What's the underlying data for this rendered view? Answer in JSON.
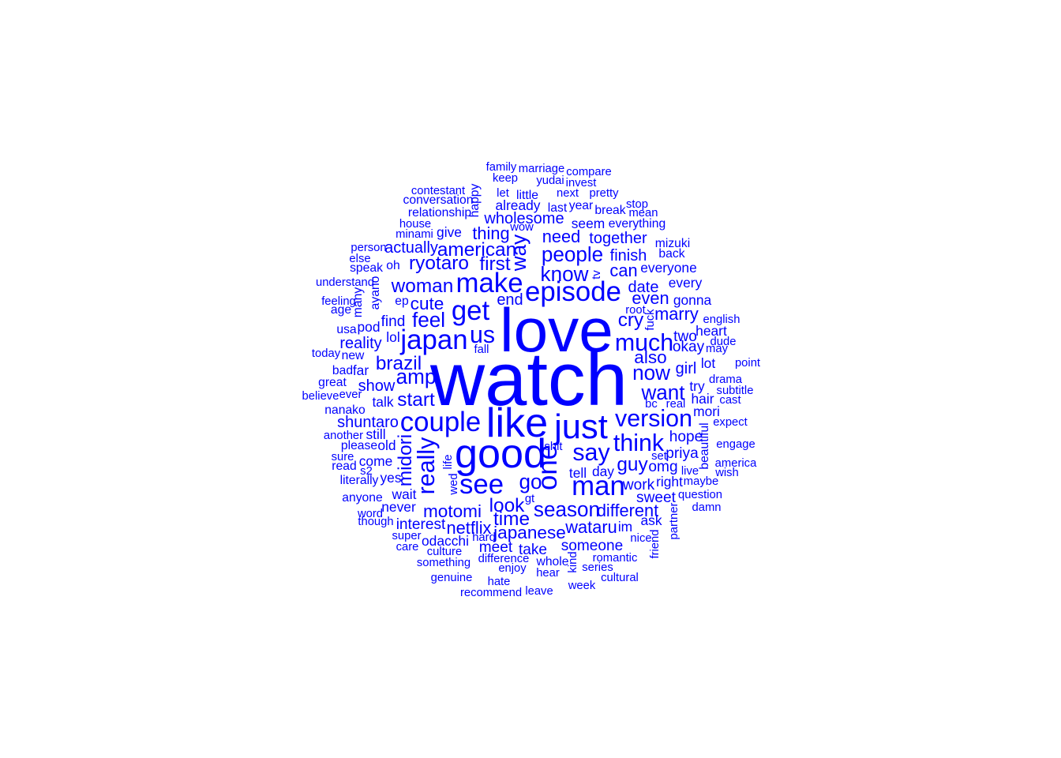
{
  "word_cloud": {
    "color": "#0000ff",
    "words": [
      {
        "text": "watch",
        "size": 11
      },
      {
        "text": "love",
        "size": 9
      },
      {
        "text": "like",
        "size": 6
      },
      {
        "text": "good",
        "size": 6
      },
      {
        "text": "just",
        "size": 5
      },
      {
        "text": "episode",
        "size": 4
      },
      {
        "text": "get",
        "size": 4
      },
      {
        "text": "couple",
        "size": 4
      },
      {
        "text": "japan",
        "size": 4
      },
      {
        "text": "make",
        "size": 4
      },
      {
        "text": "one",
        "size": 4
      },
      {
        "text": "man",
        "size": 4
      },
      {
        "text": "see",
        "size": 4
      },
      {
        "text": "version",
        "size": 3.5
      },
      {
        "text": "much",
        "size": 3.5
      },
      {
        "text": "really",
        "size": 3.5
      },
      {
        "text": "say",
        "size": 3.5
      },
      {
        "text": "think",
        "size": 3.5
      },
      {
        "text": "us",
        "size": 3.5
      },
      {
        "text": "want",
        "size": 3
      },
      {
        "text": "go",
        "size": 3
      },
      {
        "text": "know",
        "size": 3
      },
      {
        "text": "people",
        "size": 3
      },
      {
        "text": "amp",
        "size": 3
      },
      {
        "text": "feel",
        "size": 3
      },
      {
        "text": "now",
        "size": 3
      },
      {
        "text": "season",
        "size": 3
      },
      {
        "text": "way",
        "size": 3
      },
      {
        "text": "american",
        "size": 2.8
      },
      {
        "text": "look",
        "size": 2.8
      },
      {
        "text": "time",
        "size": 2.8
      },
      {
        "text": "ryotaro",
        "size": 2.8
      },
      {
        "text": "woman",
        "size": 2.8
      },
      {
        "text": "midori",
        "size": 2.8
      },
      {
        "text": "start",
        "size": 2.8
      },
      {
        "text": "brazil",
        "size": 2.8
      },
      {
        "text": "cry",
        "size": 2.8
      },
      {
        "text": "guy",
        "size": 2.8
      },
      {
        "text": "first",
        "size": 2.8
      },
      {
        "text": "motomi",
        "size": 2.6
      },
      {
        "text": "cute",
        "size": 2.6
      },
      {
        "text": "japanese",
        "size": 2.6
      },
      {
        "text": "also",
        "size": 2.6
      },
      {
        "text": "wataru",
        "size": 2.5
      },
      {
        "text": "need",
        "size": 2.5
      },
      {
        "text": "can",
        "size": 2.5
      },
      {
        "text": "even",
        "size": 2.5
      },
      {
        "text": "thing",
        "size": 2.5
      },
      {
        "text": "different",
        "size": 2.5
      },
      {
        "text": "marry",
        "size": 2.5
      },
      {
        "text": "netflix",
        "size": 2.5
      },
      {
        "text": "finish",
        "size": 2.3
      },
      {
        "text": "together",
        "size": 2.3
      },
      {
        "text": "wholesome",
        "size": 2.3
      },
      {
        "text": "girl",
        "size": 2.3
      },
      {
        "text": "date",
        "size": 2.3
      },
      {
        "text": "end",
        "size": 2.3
      },
      {
        "text": "show",
        "size": 2.3
      },
      {
        "text": "reality",
        "size": 2.3
      },
      {
        "text": "shuntaro",
        "size": 2.3
      },
      {
        "text": "actually",
        "size": 2.3
      },
      {
        "text": "find",
        "size": 2.2
      },
      {
        "text": "meet",
        "size": 2.2
      },
      {
        "text": "take",
        "size": 2.2
      },
      {
        "text": "someone",
        "size": 2.2
      },
      {
        "text": "sweet",
        "size": 2.2
      },
      {
        "text": "interest",
        "size": 2.2
      },
      {
        "text": "work",
        "size": 2.2
      },
      {
        "text": "omg",
        "size": 2.2
      },
      {
        "text": "priya",
        "size": 2.2
      },
      {
        "text": "hope",
        "size": 2.2
      },
      {
        "text": "two",
        "size": 2.2
      },
      {
        "text": "okay",
        "size": 2.2
      },
      {
        "text": "every",
        "size": 2
      },
      {
        "text": "gonna",
        "size": 2
      },
      {
        "text": "everyone",
        "size": 2
      },
      {
        "text": "seem",
        "size": 2
      },
      {
        "text": "already",
        "size": 2
      },
      {
        "text": "give",
        "size": 2
      },
      {
        "text": "lol",
        "size": 2
      },
      {
        "text": "talk",
        "size": 2
      },
      {
        "text": "still",
        "size": 2
      },
      {
        "text": "old",
        "size": 2
      },
      {
        "text": "come",
        "size": 2
      },
      {
        "text": "yes",
        "size": 2
      },
      {
        "text": "wait",
        "size": 2
      },
      {
        "text": "never",
        "size": 2
      },
      {
        "text": "odacchi",
        "size": 2
      },
      {
        "text": "tell",
        "size": 2
      },
      {
        "text": "day",
        "size": 2
      },
      {
        "text": "right",
        "size": 2
      },
      {
        "text": "im",
        "size": 2
      },
      {
        "text": "ask",
        "size": 2
      },
      {
        "text": "pod",
        "size": 2
      },
      {
        "text": "far",
        "size": 2
      },
      {
        "text": "mori",
        "size": 2
      },
      {
        "text": "hair",
        "size": 2
      },
      {
        "text": "try",
        "size": 2
      },
      {
        "text": "lot",
        "size": 2
      },
      {
        "text": "heart",
        "size": 2
      },
      {
        "text": "whole",
        "size": 1.8
      },
      {
        "text": "beautiful",
        "size": 1.8
      },
      {
        "text": "ayano",
        "size": 1.8
      },
      {
        "text": "happy",
        "size": 1.8
      },
      {
        "text": "relationship",
        "size": 1.8
      },
      {
        "text": "conversation",
        "size": 1.8
      },
      {
        "text": "contestant",
        "size": 1.7
      },
      {
        "text": "little",
        "size": 1.8
      },
      {
        "text": "last",
        "size": 1.8
      },
      {
        "text": "year",
        "size": 1.8
      },
      {
        "text": "break",
        "size": 1.8
      },
      {
        "text": "everything",
        "size": 1.8
      },
      {
        "text": "mizuki",
        "size": 1.8
      },
      {
        "text": "back",
        "size": 1.8
      },
      {
        "text": "bad",
        "size": 1.8
      },
      {
        "text": "new",
        "size": 1.8
      },
      {
        "text": "great",
        "size": 1.8
      },
      {
        "text": "nanako",
        "size": 1.8
      },
      {
        "text": "another",
        "size": 1.7
      },
      {
        "text": "please",
        "size": 1.8
      },
      {
        "text": "read",
        "size": 1.8
      },
      {
        "text": "literally",
        "size": 1.8
      },
      {
        "text": "anyone",
        "size": 1.8
      },
      {
        "text": "usa",
        "size": 1.8
      },
      {
        "text": "age",
        "size": 1.8
      },
      {
        "text": "feeling",
        "size": 1.7
      },
      {
        "text": "many",
        "size": 1.8
      },
      {
        "text": "understand",
        "size": 1.7
      },
      {
        "text": "speak",
        "size": 1.8
      },
      {
        "text": "else",
        "size": 1.7
      },
      {
        "text": "person",
        "size": 1.7
      },
      {
        "text": "minami",
        "size": 1.7
      },
      {
        "text": "house",
        "size": 1.7
      },
      {
        "text": "oh",
        "size": 1.8
      },
      {
        "text": "ep",
        "size": 1.8
      },
      {
        "text": "wow",
        "size": 1.7
      },
      {
        "text": "pretty",
        "size": 1.7
      },
      {
        "text": "next",
        "size": 1.7
      },
      {
        "text": "let",
        "size": 1.7
      },
      {
        "text": "yudai",
        "size": 1.7
      },
      {
        "text": "invest",
        "size": 1.7
      },
      {
        "text": "keep",
        "size": 1.7
      },
      {
        "text": "family",
        "size": 1.7
      },
      {
        "text": "marriage",
        "size": 1.7
      },
      {
        "text": "compare",
        "size": 1.7
      },
      {
        "text": "stop",
        "size": 1.7
      },
      {
        "text": "mean",
        "size": 1.7
      },
      {
        "text": "tv",
        "size": 1.7
      },
      {
        "text": "root",
        "size": 1.7
      },
      {
        "text": "fuck",
        "size": 1.7
      },
      {
        "text": "english",
        "size": 1.7
      },
      {
        "text": "dude",
        "size": 1.7
      },
      {
        "text": "may",
        "size": 1.7
      },
      {
        "text": "point",
        "size": 1.7
      },
      {
        "text": "drama",
        "size": 1.7
      },
      {
        "text": "subtitle",
        "size": 1.7
      },
      {
        "text": "cast",
        "size": 1.7
      },
      {
        "text": "real",
        "size": 1.7
      },
      {
        "text": "bc",
        "size": 1.7
      },
      {
        "text": "expect",
        "size": 1.7
      },
      {
        "text": "engage",
        "size": 1.7
      },
      {
        "text": "america",
        "size": 1.7
      },
      {
        "text": "wish",
        "size": 1.7
      },
      {
        "text": "set",
        "size": 1.7
      },
      {
        "text": "live",
        "size": 1.7
      },
      {
        "text": "maybe",
        "size": 1.7
      },
      {
        "text": "question",
        "size": 1.7
      },
      {
        "text": "damn",
        "size": 1.7
      },
      {
        "text": "partner",
        "size": 1.7
      },
      {
        "text": "friend",
        "size": 1.7
      },
      {
        "text": "nice",
        "size": 1.7
      },
      {
        "text": "romantic",
        "size": 1.7
      },
      {
        "text": "series",
        "size": 1.7
      },
      {
        "text": "cultural",
        "size": 1.7
      },
      {
        "text": "week",
        "size": 1.7
      },
      {
        "text": "hear",
        "size": 1.7
      },
      {
        "text": "leave",
        "size": 1.7
      },
      {
        "text": "kind",
        "size": 1.7
      },
      {
        "text": "enjoy",
        "size": 1.7
      },
      {
        "text": "difference",
        "size": 1.7
      },
      {
        "text": "hate",
        "size": 1.7
      },
      {
        "text": "recommend",
        "size": 1.7
      },
      {
        "text": "genuine",
        "size": 1.7
      },
      {
        "text": "something",
        "size": 1.7
      },
      {
        "text": "culture",
        "size": 1.7
      },
      {
        "text": "care",
        "size": 1.7
      },
      {
        "text": "super",
        "size": 1.7
      },
      {
        "text": "hard",
        "size": 1.7
      },
      {
        "text": "though",
        "size": 1.7
      },
      {
        "text": "word",
        "size": 1.7
      },
      {
        "text": "gt",
        "size": 1.7
      },
      {
        "text": "shit",
        "size": 1.7
      },
      {
        "text": "wed",
        "size": 1.7
      },
      {
        "text": "life",
        "size": 1.7
      },
      {
        "text": "s2",
        "size": 1.7
      },
      {
        "text": "sure",
        "size": 1.7
      },
      {
        "text": "ever",
        "size": 1.7
      },
      {
        "text": "believe",
        "size": 1.7
      },
      {
        "text": "today",
        "size": 1.7
      },
      {
        "text": "fall",
        "size": 1.7
      }
    ]
  }
}
